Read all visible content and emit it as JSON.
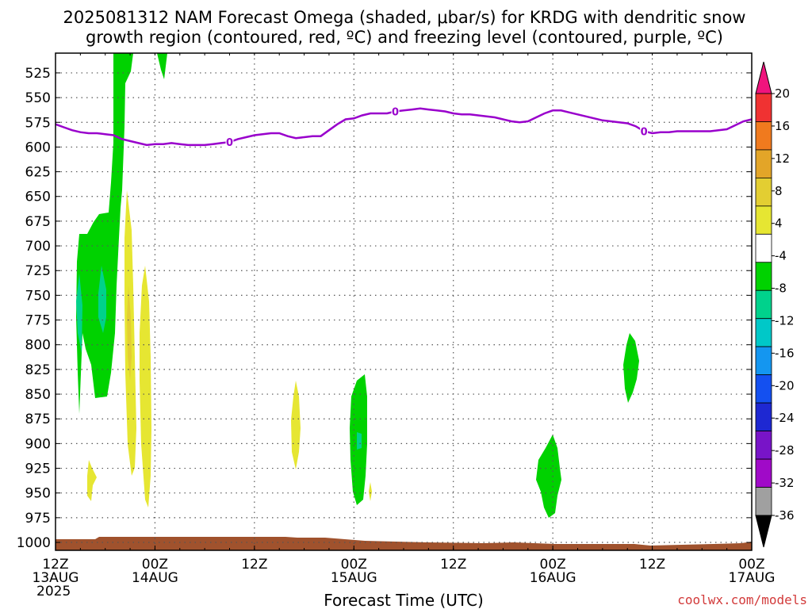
{
  "chart_data": {
    "type": "area",
    "title_line1": "2025081312 NAM Forecast Omega (shaded, μbar/s) for KRDG with dendritic snow",
    "title_line2": "growth region (contoured, red, ºC) and freezing level (contoured, purple, ºC)",
    "xlabel": "Forecast Time (UTC)",
    "credit": "coolwx.com/models",
    "x_range": [
      0,
      84
    ],
    "y_levels": [
      "525",
      "550",
      "575",
      "600",
      "625",
      "650",
      "675",
      "700",
      "725",
      "750",
      "775",
      "800",
      "825",
      "850",
      "875",
      "900",
      "925",
      "950",
      "975",
      "1000"
    ],
    "y_range": [
      505,
      1008
    ],
    "x_ticks": [
      {
        "hour": 0,
        "line1": "12Z",
        "line2": "13AUG",
        "line3": "2025"
      },
      {
        "hour": 12,
        "line1": "00Z",
        "line2": "14AUG",
        "line3": ""
      },
      {
        "hour": 24,
        "line1": "12Z",
        "line2": "",
        "line3": ""
      },
      {
        "hour": 36,
        "line1": "00Z",
        "line2": "15AUG",
        "line3": ""
      },
      {
        "hour": 48,
        "line1": "12Z",
        "line2": "",
        "line3": ""
      },
      {
        "hour": 60,
        "line1": "00Z",
        "line2": "16AUG",
        "line3": ""
      },
      {
        "hour": 72,
        "line1": "12Z",
        "line2": "",
        "line3": ""
      },
      {
        "hour": 84,
        "line1": "00Z",
        "line2": "17AUG",
        "line3": ""
      }
    ],
    "grid": true,
    "colorbar": {
      "labels": [
        "20",
        "16",
        "12",
        "8",
        "4",
        "-4",
        "-8",
        "-12",
        "-16",
        "-20",
        "-24",
        "-28",
        "-32",
        "-36"
      ],
      "colors": [
        "#f0147d",
        "#f03232",
        "#f07a1e",
        "#e3a528",
        "#e3ce32",
        "#e6e632",
        "#ffffff",
        "#00d200",
        "#00d28c",
        "#00c8c8",
        "#1496f0",
        "#1450f0",
        "#1e28d2",
        "#7814c8",
        "#a00ac8",
        "#a0a0a0"
      ]
    },
    "freezing_level": {
      "label": "0",
      "color": "#9900cc",
      "points": [
        [
          0,
          577
        ],
        [
          1,
          580
        ],
        [
          2,
          583
        ],
        [
          3,
          585
        ],
        [
          4,
          586
        ],
        [
          5,
          586
        ],
        [
          6,
          587
        ],
        [
          7,
          588
        ],
        [
          8,
          592
        ],
        [
          9,
          594
        ],
        [
          10,
          596
        ],
        [
          11,
          598
        ],
        [
          12,
          597
        ],
        [
          13,
          597
        ],
        [
          14,
          596
        ],
        [
          15,
          597
        ],
        [
          16,
          598
        ],
        [
          17,
          598
        ],
        [
          18,
          598
        ],
        [
          19,
          597
        ],
        [
          20,
          596
        ],
        [
          21,
          595
        ],
        [
          22,
          592
        ],
        [
          23,
          590
        ],
        [
          24,
          588
        ],
        [
          25,
          587
        ],
        [
          26,
          586
        ],
        [
          27,
          586
        ],
        [
          28,
          589
        ],
        [
          29,
          591
        ],
        [
          30,
          590
        ],
        [
          31,
          589
        ],
        [
          32,
          589
        ],
        [
          33,
          583
        ],
        [
          34,
          577
        ],
        [
          35,
          572
        ],
        [
          36,
          571
        ],
        [
          37,
          568
        ],
        [
          38,
          566
        ],
        [
          39,
          566
        ],
        [
          40,
          566
        ],
        [
          41,
          564
        ],
        [
          42,
          563
        ],
        [
          43,
          562
        ],
        [
          44,
          561
        ],
        [
          45,
          562
        ],
        [
          46,
          563
        ],
        [
          47,
          564
        ],
        [
          48,
          566
        ],
        [
          49,
          567
        ],
        [
          50,
          567
        ],
        [
          51,
          568
        ],
        [
          52,
          569
        ],
        [
          53,
          570
        ],
        [
          54,
          572
        ],
        [
          55,
          574
        ],
        [
          56,
          575
        ],
        [
          57,
          574
        ],
        [
          58,
          570
        ],
        [
          59,
          566
        ],
        [
          60,
          563
        ],
        [
          61,
          563
        ],
        [
          62,
          565
        ],
        [
          63,
          567
        ],
        [
          64,
          569
        ],
        [
          65,
          571
        ],
        [
          66,
          573
        ],
        [
          67,
          574
        ],
        [
          68,
          575
        ],
        [
          69,
          576
        ],
        [
          70,
          579
        ],
        [
          71,
          584
        ],
        [
          72,
          586
        ],
        [
          73,
          585
        ],
        [
          74,
          585
        ],
        [
          75,
          584
        ],
        [
          76,
          584
        ],
        [
          77,
          584
        ],
        [
          78,
          584
        ],
        [
          79,
          584
        ],
        [
          80,
          583
        ],
        [
          81,
          582
        ],
        [
          82,
          578
        ],
        [
          83,
          574
        ],
        [
          84,
          572
        ]
      ]
    },
    "surface": {
      "color": "#a0522d"
    }
  }
}
